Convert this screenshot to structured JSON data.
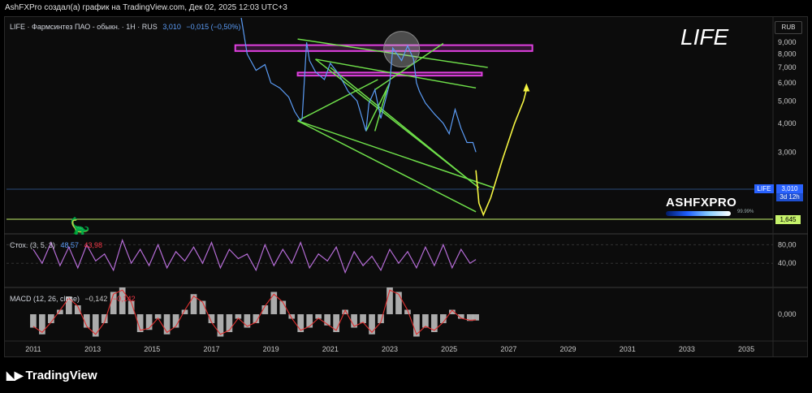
{
  "header": {
    "attribution": "AshFXPro создал(а) график на TradingView.com, Дек 02, 2025 12:03 UTC+3"
  },
  "main_legend": {
    "title": "LIFE · Фармсинтез ПАО - обыкн. · 1Н · RUS",
    "price": "3,010",
    "change": "−0,015 (−0,50%)"
  },
  "big_label": "LIFE",
  "currency": "RUB",
  "price_tag": {
    "symbol": "LIFE",
    "value": "3,010",
    "countdown": "3d 12h"
  },
  "low_tag": "1,645",
  "watermark": {
    "text": "ASHFXPRO",
    "percent": "99.99%"
  },
  "stoch_legend": {
    "title": "Стох. (3, 5, 3)",
    "k": "48,57",
    "d": "43,98"
  },
  "macd_legend": {
    "title": "MACD (12, 26, close)",
    "macd": "−0,142",
    "signal": "−0,142"
  },
  "footer": {
    "brand": "TradingView",
    "logo_icon": "tv-logo-icon"
  },
  "colors": {
    "price_line": "#5b9cf6",
    "trendlines": "#6fe04a",
    "zones": "#e040e0",
    "projection": "#f5f542",
    "stoch": "#b56cd6",
    "macd_line": "#e03030",
    "hist": "#c8c8c8"
  },
  "chart_data": [
    {
      "type": "line",
      "name": "price",
      "x": [
        2018.0,
        2018.2,
        2018.5,
        2018.8,
        2019.0,
        2019.3,
        2019.6,
        2019.8,
        2020.0,
        2020.05,
        2020.2,
        2020.3,
        2020.5,
        2020.8,
        2021.0,
        2021.3,
        2021.6,
        2021.9,
        2022.2,
        2022.3,
        2022.5,
        2022.7,
        2023.0,
        2023.1,
        2023.4,
        2023.6,
        2023.8,
        2023.9,
        2024.0,
        2024.2,
        2024.5,
        2024.8,
        2025.0,
        2025.2,
        2025.4,
        2025.6,
        2025.8,
        2025.9
      ],
      "y": [
        11.5,
        8.0,
        6.8,
        7.2,
        6.0,
        5.7,
        5.2,
        4.5,
        4.1,
        4.2,
        9.0,
        7.5,
        6.7,
        6.2,
        7.3,
        6.5,
        5.5,
        5.0,
        3.7,
        4.9,
        5.6,
        4.2,
        6.0,
        8.5,
        7.5,
        8.7,
        7.6,
        6.0,
        5.5,
        4.9,
        4.4,
        4.0,
        3.6,
        4.6,
        3.8,
        3.3,
        3.3,
        3.0
      ],
      "ylim": [
        1.4,
        11.5
      ],
      "xlim": [
        2010.1,
        2035.9
      ],
      "ticks_y": [
        "9,000",
        "8,000",
        "7,000",
        "6,000",
        "5,000",
        "4,000",
        "3,000",
        "2,000"
      ],
      "tick_values_y": [
        9,
        8,
        7,
        6,
        5,
        4,
        3,
        2
      ],
      "ticks_x": [
        "2011",
        "2013",
        "2015",
        "2017",
        "2019",
        "2021",
        "2023",
        "2025",
        "2027",
        "2029",
        "2031",
        "2033",
        "2035"
      ],
      "tick_values_x": [
        2011,
        2013,
        2015,
        2017,
        2019,
        2021,
        2023,
        2025,
        2027,
        2029,
        2031,
        2033,
        2035
      ]
    },
    {
      "type": "line",
      "name": "projection",
      "x": [
        2025.9,
        2026.0,
        2026.15,
        2026.4,
        2026.8,
        2027.2,
        2027.5,
        2027.6
      ],
      "y": [
        2.5,
        1.8,
        1.6,
        1.9,
        2.8,
        4.0,
        5.0,
        5.6
      ]
    },
    {
      "type": "line",
      "name": "stoch",
      "ylim": [
        0,
        100
      ],
      "ticks_y": [
        "80,00",
        "40,00"
      ],
      "tick_values_y": [
        80,
        40
      ],
      "x": [
        2011.0,
        2011.3,
        2011.6,
        2011.9,
        2012.2,
        2012.5,
        2012.8,
        2013.1,
        2013.4,
        2013.7,
        2014.0,
        2014.3,
        2014.6,
        2014.9,
        2015.2,
        2015.5,
        2015.8,
        2016.1,
        2016.4,
        2016.7,
        2017.0,
        2017.3,
        2017.6,
        2017.9,
        2018.2,
        2018.5,
        2018.8,
        2019.1,
        2019.4,
        2019.7,
        2020.0,
        2020.3,
        2020.6,
        2020.9,
        2021.2,
        2021.5,
        2021.8,
        2022.1,
        2022.4,
        2022.7,
        2023.0,
        2023.3,
        2023.6,
        2023.9,
        2024.2,
        2024.5,
        2024.8,
        2025.1,
        2025.4,
        2025.7,
        2025.9
      ],
      "y": [
        70,
        40,
        85,
        35,
        75,
        30,
        80,
        45,
        60,
        25,
        90,
        40,
        70,
        35,
        80,
        30,
        65,
        45,
        75,
        40,
        85,
        30,
        70,
        50,
        60,
        25,
        80,
        35,
        70,
        40,
        85,
        30,
        60,
        45,
        75,
        20,
        65,
        35,
        55,
        25,
        70,
        40,
        65,
        30,
        75,
        35,
        80,
        30,
        70,
        40,
        48
      ]
    },
    {
      "type": "bar",
      "name": "macd_hist",
      "ylim": [
        -0.6,
        0.6
      ],
      "ticks_y": [
        "0,000"
      ],
      "tick_values_y": [
        0
      ],
      "x": [
        2011.0,
        2011.3,
        2011.6,
        2011.9,
        2012.2,
        2012.5,
        2012.8,
        2013.1,
        2013.4,
        2013.7,
        2014.0,
        2014.3,
        2014.6,
        2014.9,
        2015.2,
        2015.5,
        2015.8,
        2016.1,
        2016.4,
        2016.7,
        2017.0,
        2017.3,
        2017.6,
        2017.9,
        2018.2,
        2018.5,
        2018.8,
        2019.1,
        2019.4,
        2019.7,
        2020.0,
        2020.3,
        2020.6,
        2020.9,
        2021.2,
        2021.5,
        2021.8,
        2022.1,
        2022.4,
        2022.7,
        2023.0,
        2023.3,
        2023.6,
        2023.9,
        2024.2,
        2024.5,
        2024.8,
        2025.1,
        2025.4,
        2025.7,
        2025.9
      ],
      "values": [
        -0.3,
        -0.45,
        -0.2,
        0.1,
        0.4,
        0.2,
        -0.3,
        -0.5,
        -0.2,
        0.5,
        0.6,
        0.3,
        -0.4,
        -0.35,
        -0.1,
        -0.45,
        -0.3,
        0.1,
        0.45,
        0.3,
        -0.2,
        -0.5,
        -0.4,
        -0.1,
        -0.3,
        -0.2,
        0.2,
        0.5,
        0.3,
        -0.1,
        -0.4,
        -0.3,
        -0.1,
        -0.25,
        -0.4,
        0.1,
        -0.3,
        -0.2,
        -0.45,
        -0.2,
        0.6,
        0.5,
        0.1,
        -0.5,
        -0.3,
        -0.4,
        -0.2,
        0.1,
        -0.1,
        -0.15,
        -0.14
      ]
    }
  ]
}
